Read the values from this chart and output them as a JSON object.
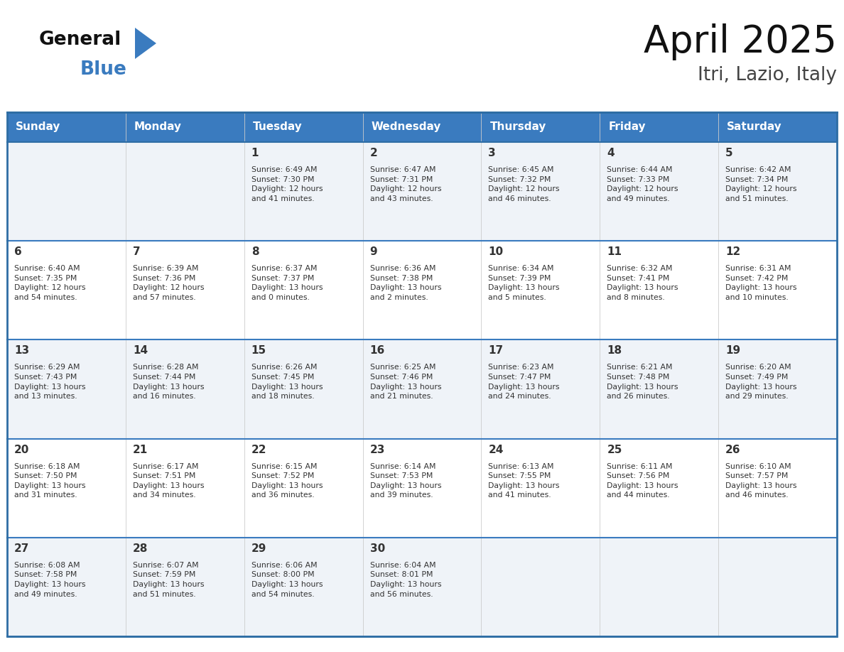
{
  "title": "April 2025",
  "subtitle": "Itri, Lazio, Italy",
  "header_bg_color": "#3a7bbf",
  "header_text_color": "#ffffff",
  "border_color": "#2e6da4",
  "row_divider_color": "#3a7bbf",
  "text_color": "#333333",
  "days_of_week": [
    "Sunday",
    "Monday",
    "Tuesday",
    "Wednesday",
    "Thursday",
    "Friday",
    "Saturday"
  ],
  "calendar": [
    [
      {
        "day": "",
        "info": ""
      },
      {
        "day": "",
        "info": ""
      },
      {
        "day": "1",
        "info": "Sunrise: 6:49 AM\nSunset: 7:30 PM\nDaylight: 12 hours\nand 41 minutes."
      },
      {
        "day": "2",
        "info": "Sunrise: 6:47 AM\nSunset: 7:31 PM\nDaylight: 12 hours\nand 43 minutes."
      },
      {
        "day": "3",
        "info": "Sunrise: 6:45 AM\nSunset: 7:32 PM\nDaylight: 12 hours\nand 46 minutes."
      },
      {
        "day": "4",
        "info": "Sunrise: 6:44 AM\nSunset: 7:33 PM\nDaylight: 12 hours\nand 49 minutes."
      },
      {
        "day": "5",
        "info": "Sunrise: 6:42 AM\nSunset: 7:34 PM\nDaylight: 12 hours\nand 51 minutes."
      }
    ],
    [
      {
        "day": "6",
        "info": "Sunrise: 6:40 AM\nSunset: 7:35 PM\nDaylight: 12 hours\nand 54 minutes."
      },
      {
        "day": "7",
        "info": "Sunrise: 6:39 AM\nSunset: 7:36 PM\nDaylight: 12 hours\nand 57 minutes."
      },
      {
        "day": "8",
        "info": "Sunrise: 6:37 AM\nSunset: 7:37 PM\nDaylight: 13 hours\nand 0 minutes."
      },
      {
        "day": "9",
        "info": "Sunrise: 6:36 AM\nSunset: 7:38 PM\nDaylight: 13 hours\nand 2 minutes."
      },
      {
        "day": "10",
        "info": "Sunrise: 6:34 AM\nSunset: 7:39 PM\nDaylight: 13 hours\nand 5 minutes."
      },
      {
        "day": "11",
        "info": "Sunrise: 6:32 AM\nSunset: 7:41 PM\nDaylight: 13 hours\nand 8 minutes."
      },
      {
        "day": "12",
        "info": "Sunrise: 6:31 AM\nSunset: 7:42 PM\nDaylight: 13 hours\nand 10 minutes."
      }
    ],
    [
      {
        "day": "13",
        "info": "Sunrise: 6:29 AM\nSunset: 7:43 PM\nDaylight: 13 hours\nand 13 minutes."
      },
      {
        "day": "14",
        "info": "Sunrise: 6:28 AM\nSunset: 7:44 PM\nDaylight: 13 hours\nand 16 minutes."
      },
      {
        "day": "15",
        "info": "Sunrise: 6:26 AM\nSunset: 7:45 PM\nDaylight: 13 hours\nand 18 minutes."
      },
      {
        "day": "16",
        "info": "Sunrise: 6:25 AM\nSunset: 7:46 PM\nDaylight: 13 hours\nand 21 minutes."
      },
      {
        "day": "17",
        "info": "Sunrise: 6:23 AM\nSunset: 7:47 PM\nDaylight: 13 hours\nand 24 minutes."
      },
      {
        "day": "18",
        "info": "Sunrise: 6:21 AM\nSunset: 7:48 PM\nDaylight: 13 hours\nand 26 minutes."
      },
      {
        "day": "19",
        "info": "Sunrise: 6:20 AM\nSunset: 7:49 PM\nDaylight: 13 hours\nand 29 minutes."
      }
    ],
    [
      {
        "day": "20",
        "info": "Sunrise: 6:18 AM\nSunset: 7:50 PM\nDaylight: 13 hours\nand 31 minutes."
      },
      {
        "day": "21",
        "info": "Sunrise: 6:17 AM\nSunset: 7:51 PM\nDaylight: 13 hours\nand 34 minutes."
      },
      {
        "day": "22",
        "info": "Sunrise: 6:15 AM\nSunset: 7:52 PM\nDaylight: 13 hours\nand 36 minutes."
      },
      {
        "day": "23",
        "info": "Sunrise: 6:14 AM\nSunset: 7:53 PM\nDaylight: 13 hours\nand 39 minutes."
      },
      {
        "day": "24",
        "info": "Sunrise: 6:13 AM\nSunset: 7:55 PM\nDaylight: 13 hours\nand 41 minutes."
      },
      {
        "day": "25",
        "info": "Sunrise: 6:11 AM\nSunset: 7:56 PM\nDaylight: 13 hours\nand 44 minutes."
      },
      {
        "day": "26",
        "info": "Sunrise: 6:10 AM\nSunset: 7:57 PM\nDaylight: 13 hours\nand 46 minutes."
      }
    ],
    [
      {
        "day": "27",
        "info": "Sunrise: 6:08 AM\nSunset: 7:58 PM\nDaylight: 13 hours\nand 49 minutes."
      },
      {
        "day": "28",
        "info": "Sunrise: 6:07 AM\nSunset: 7:59 PM\nDaylight: 13 hours\nand 51 minutes."
      },
      {
        "day": "29",
        "info": "Sunrise: 6:06 AM\nSunset: 8:00 PM\nDaylight: 13 hours\nand 54 minutes."
      },
      {
        "day": "30",
        "info": "Sunrise: 6:04 AM\nSunset: 8:01 PM\nDaylight: 13 hours\nand 56 minutes."
      },
      {
        "day": "",
        "info": ""
      },
      {
        "day": "",
        "info": ""
      },
      {
        "day": "",
        "info": ""
      }
    ]
  ],
  "logo_general_color": "#111111",
  "logo_blue_color": "#3a7bbf",
  "logo_triangle_color": "#3a7bbf"
}
